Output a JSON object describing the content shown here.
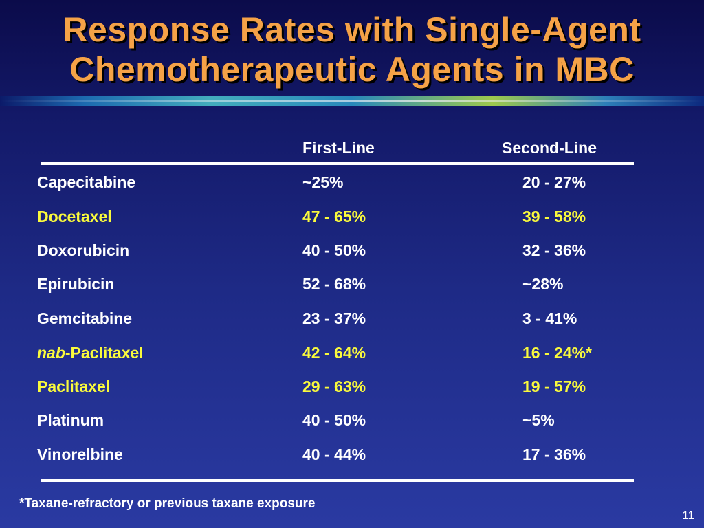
{
  "slide": {
    "title_line1": "Response Rates with Single-Agent",
    "title_line2": "Chemotherapeutic Agents in MBC",
    "footnote": "*Taxane-refractory or previous taxane exposure",
    "page_number": "11"
  },
  "table": {
    "headers": {
      "first_line": "First-Line",
      "second_line": "Second-Line"
    },
    "rows": [
      {
        "agent": "Capecitabine",
        "first": "~25%",
        "second": "20 - 27%",
        "highlight": false
      },
      {
        "agent": "Docetaxel",
        "first": "47 - 65%",
        "second": "39 - 58%",
        "highlight": true
      },
      {
        "agent": "Doxorubicin",
        "first": "40 - 50%",
        "second": "32 - 36%",
        "highlight": false
      },
      {
        "agent": "Epirubicin",
        "first": "52 - 68%",
        "second": "~28%",
        "highlight": false
      },
      {
        "agent": "Gemcitabine",
        "first": "23 - 37%",
        "second": "3 - 41%",
        "highlight": false
      },
      {
        "agent_prefix": "nab",
        "agent": "-Paclitaxel",
        "first": "42 - 64%",
        "second": "16 - 24%*",
        "highlight": true
      },
      {
        "agent": "Paclitaxel",
        "first": "29 - 63%",
        "second": "19 - 57%",
        "highlight": true
      },
      {
        "agent": "Platinum",
        "first": "40 - 50%",
        "second": "~5%",
        "highlight": false
      },
      {
        "agent": "Vinorelbine",
        "first": "40 - 44%",
        "second": "17 - 36%",
        "highlight": false
      }
    ]
  },
  "colors": {
    "title": "#f5a247",
    "highlight_text": "#fafa3c",
    "normal_text": "#ffffff",
    "background": "#1e2a86"
  }
}
